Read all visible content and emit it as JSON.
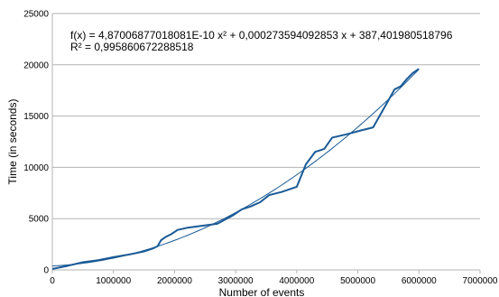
{
  "chart_data": {
    "type": "line",
    "xlabel": "Number of events",
    "ylabel": "Time (in seconds)",
    "xlim": [
      0,
      7000000
    ],
    "ylim": [
      0,
      25000
    ],
    "x_ticks": [
      "0",
      "1000000",
      "2000000",
      "3000000",
      "4000000",
      "5000000",
      "6000000",
      "7000000"
    ],
    "y_ticks": [
      "0",
      "5000",
      "10000",
      "15000",
      "20000",
      "25000"
    ],
    "grid": "horizontal",
    "legend": "none",
    "annotation": {
      "equation": "f(x) = 4,87006877018081E-10 x² + 0,000273594092853 x + 387,401980518796",
      "r_squared": "R² = 0,995860672288518"
    },
    "trendline": {
      "type": "polynomial",
      "coefficients": [
        4.87006877018081e-10,
        0.000273594092853,
        387.401980518796
      ],
      "x_range": [
        0,
        6000000
      ]
    },
    "series": [
      {
        "x": [
          0,
          250000,
          500000,
          750000,
          1000000,
          1250000,
          1500000,
          1650000,
          1720000,
          1780000,
          1850000,
          1950000,
          2050000,
          2200000,
          2450000,
          2700000,
          2950000,
          3100000,
          3250000,
          3400000,
          3550000,
          3750000,
          4000000,
          4150000,
          4300000,
          4450000,
          4580000,
          4800000,
          5050000,
          5250000,
          5450000,
          5600000,
          5700000,
          5800000,
          5900000,
          6000000
        ],
        "values": [
          100,
          400,
          750,
          950,
          1250,
          1500,
          1800,
          2100,
          2300,
          2900,
          3200,
          3500,
          3900,
          4100,
          4300,
          4500,
          5300,
          5900,
          6200,
          6600,
          7300,
          7600,
          8100,
          10300,
          11500,
          11800,
          12900,
          13200,
          13600,
          13900,
          16000,
          17600,
          17900,
          18600,
          19200,
          19600
        ],
        "color": "#1a5a96"
      }
    ],
    "colors": {
      "series": "#1a5a96",
      "trendline": "#1a5a96",
      "grid": "#b3b3b3",
      "axis": "#b3b3b3"
    }
  }
}
